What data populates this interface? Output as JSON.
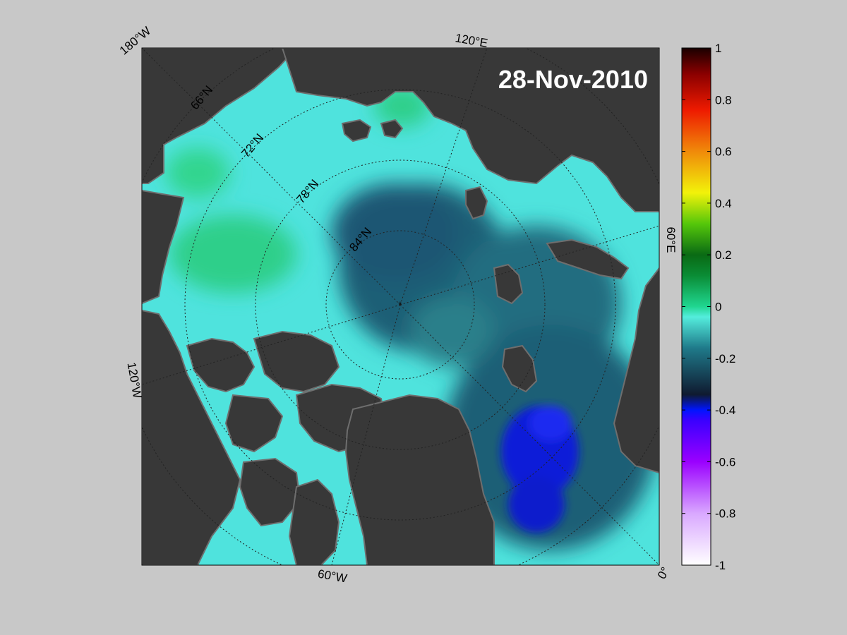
{
  "date": "28-Nov-2010",
  "map_labels": {
    "lon_180w": "180°W",
    "lon_120e": "120°E",
    "lon_60e": "60°E",
    "lon_120w": "120°W",
    "lon_60w": "60°W",
    "lon_0": "0°",
    "lat_66n": "66°N",
    "lat_72n": "72°N",
    "lat_78n": "78°N",
    "lat_84n": "84°N"
  },
  "colorbar": {
    "min": -1,
    "max": 1,
    "ticks": [
      "1",
      "0.8",
      "0.6",
      "0.4",
      "0.2",
      "0",
      "-0.2",
      "-0.4",
      "-0.6",
      "-0.8",
      "-1"
    ]
  },
  "colors": {
    "background": "#c8c8c8",
    "land": "#383838",
    "land_edge": "#6e6e6e",
    "ocean_low": "#0a1fd8",
    "ocean_mid": "#1f5f76",
    "ocean_cyan": "#4fe3dd",
    "ocean_green": "#2fcf8a"
  }
}
